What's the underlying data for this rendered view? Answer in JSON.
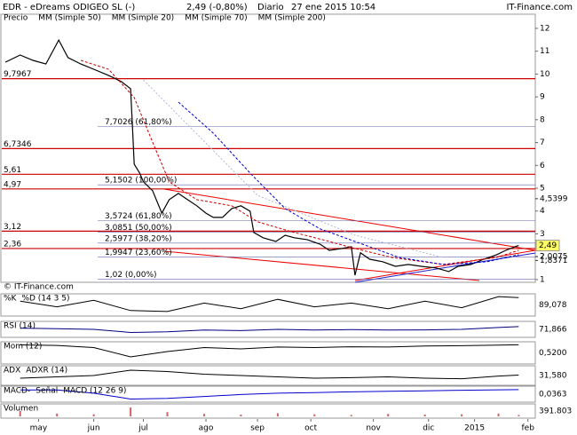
{
  "header": {
    "symbol": "EDR - eDreams ODIGEO SL (-)",
    "quote": "2,49 (-0,80%)",
    "period": "Diario",
    "datetime": "27 ene 2015 10:54",
    "source": "IT-Finance.com"
  },
  "watermark": "© IT-Finance.com",
  "chart_data": [
    {
      "type": "line",
      "xlim": [
        0,
        290
      ],
      "ylim": [
        0.88,
        12.27
      ],
      "yticks": [
        1,
        2,
        3,
        4,
        5,
        6,
        7,
        8,
        9,
        10,
        11,
        12
      ],
      "xticks": [
        {
          "value": 20,
          "label": "may"
        },
        {
          "value": 50,
          "label": "jun"
        },
        {
          "value": 77,
          "label": "jul"
        },
        {
          "value": 111,
          "label": "ago"
        },
        {
          "value": 139,
          "label": "sep"
        },
        {
          "value": 168,
          "label": "oct"
        },
        {
          "value": 202,
          "label": "nov"
        },
        {
          "value": 232,
          "label": "dic"
        },
        {
          "value": 257,
          "label": "2015"
        },
        {
          "value": 286,
          "label": "feb"
        }
      ],
      "series": [
        {
          "name": "Precio",
          "color": "#000000",
          "x": [
            2,
            10,
            17,
            24,
            31,
            36,
            43,
            50,
            58,
            65,
            70,
            71,
            72,
            75,
            77,
            82,
            87,
            91,
            96,
            101,
            106,
            111,
            115,
            120,
            125,
            130,
            135,
            137,
            142,
            149,
            154,
            159,
            166,
            173,
            178,
            185,
            190,
            192,
            195,
            200,
            207,
            214,
            221,
            228,
            236,
            243,
            248,
            255,
            262,
            269,
            274,
            279,
            281
          ],
          "values": [
            10.52,
            10.83,
            10.6,
            10.44,
            11.49,
            10.72,
            10.44,
            10.21,
            9.94,
            9.67,
            9.36,
            7.8,
            6.05,
            5.66,
            5.28,
            4.89,
            3.91,
            4.5,
            4.77,
            4.5,
            4.23,
            3.91,
            3.72,
            3.72,
            4.11,
            4.23,
            3.99,
            3.06,
            2.83,
            2.67,
            2.94,
            2.83,
            2.75,
            2.55,
            2.28,
            2.36,
            2.44,
            1.19,
            2.17,
            1.89,
            1.78,
            1.58,
            1.66,
            1.58,
            1.51,
            1.35,
            1.58,
            1.66,
            1.89,
            2.09,
            2.28,
            2.44,
            2.49
          ]
        },
        {
          "name": "MM (Simple 50)",
          "color": "#b0b8d0",
          "dash": "2 2",
          "x": [
            77,
            139,
            192,
            240
          ],
          "values": [
            9.74,
            4.69,
            2.94,
            1.97
          ]
        },
        {
          "name": "MM (Simple 20)",
          "color": "#cc0000",
          "dash": "3 2",
          "x": [
            43,
            58,
            72,
            82,
            91,
            106,
            125,
            139,
            159,
            178,
            192,
            212,
            240,
            269,
            281
          ],
          "values": [
            10.6,
            10.21,
            8.97,
            7.02,
            5.28,
            4.5,
            4.23,
            3.53,
            3.06,
            2.67,
            2.36,
            1.97,
            1.66,
            1.97,
            2.28
          ]
        },
        {
          "name": "MM (Simple 70)",
          "color": "#0000cc",
          "dash": "3 2",
          "x": [
            96,
            115,
            135,
            154,
            173,
            192,
            216,
            240,
            264,
            281
          ],
          "values": [
            8.77,
            7.41,
            5.66,
            4.11,
            3.22,
            2.67,
            1.97,
            1.66,
            1.78,
            2.09
          ]
        },
        {
          "name": "MM (Simple 200)",
          "color": "#008800",
          "x": [],
          "values": []
        }
      ],
      "levels": [
        {
          "value": 9.7967,
          "label": "9,7967"
        },
        {
          "value": 6.7346,
          "label": "6,7346"
        },
        {
          "value": 5.61,
          "label": "5,61"
        },
        {
          "value": 4.97,
          "label": "4,97"
        },
        {
          "value": 3.12,
          "label": "3,12"
        },
        {
          "value": 2.36,
          "label": "2,36"
        }
      ],
      "fib_levels": [
        {
          "value": 7.7026,
          "label": "7,7026 (61,80%)"
        },
        {
          "value": 5.1502,
          "label": "5,1502 (100,00%)"
        },
        {
          "value": 3.5724,
          "label": "3,5724 (61,80%)"
        },
        {
          "value": 3.0851,
          "label": "3,0851 (50,00%)"
        },
        {
          "value": 2.5977,
          "label": "2,5977 (38,20%)"
        },
        {
          "value": 1.9947,
          "label": "1,9947 (23,60%)"
        },
        {
          "value": 1.02,
          "label": "1,02 (0,00%)"
        }
      ],
      "price_labels": [
        {
          "value": 4.5399,
          "label": "4,5399"
        },
        {
          "value": 2.0075,
          "label": "2,0075"
        },
        {
          "value": 1.8371,
          "label": "1,8371"
        }
      ],
      "last": {
        "value": 2.49,
        "label": "2,49"
      }
    },
    {
      "type": "line",
      "title_parts": [
        {
          "text": "%K",
          "color": "#000000"
        },
        {
          "text": "%D (14 3 5)",
          "color": "#cc0000"
        }
      ],
      "ylim": [
        0,
        100
      ],
      "color": "#000000",
      "x": [
        10,
        30,
        50,
        70,
        90,
        110,
        130,
        150,
        170,
        190,
        210,
        230,
        250,
        270,
        281
      ],
      "values": [
        70,
        40,
        75,
        20,
        15,
        60,
        30,
        80,
        40,
        60,
        30,
        70,
        35,
        95,
        89.078
      ],
      "value_label": "89,078"
    },
    {
      "type": "line",
      "title_parts": [
        {
          "text": "RSI (14)",
          "color": "#000000"
        }
      ],
      "ylim": [
        0,
        100
      ],
      "color": "#000080",
      "x": [
        10,
        30,
        50,
        70,
        90,
        110,
        130,
        150,
        170,
        190,
        210,
        230,
        250,
        270,
        281
      ],
      "values": [
        60,
        55,
        50,
        25,
        30,
        45,
        40,
        50,
        45,
        48,
        44,
        46,
        50,
        65,
        71.866
      ],
      "value_label": "71,866"
    },
    {
      "type": "line",
      "title_parts": [
        {
          "text": "Mom (12)",
          "color": "#000000"
        }
      ],
      "ylim": [
        -6,
        1
      ],
      "color": "#000000",
      "x": [
        10,
        30,
        50,
        70,
        90,
        110,
        130,
        150,
        170,
        190,
        210,
        230,
        250,
        270,
        281
      ],
      "values": [
        0.5,
        0.3,
        -0.5,
        -4,
        -2,
        -0.5,
        -1,
        -0.3,
        -0.5,
        -0.2,
        -0.3,
        0.1,
        0.2,
        0.4,
        0.52
      ],
      "value_label": "0,5200"
    },
    {
      "type": "line",
      "title_parts": [
        {
          "text": "ADX",
          "color": "#000000"
        },
        {
          "text": "ADXR (14)",
          "color": "#cc0000"
        }
      ],
      "ylim": [
        0,
        60
      ],
      "color": "#000000",
      "x": [
        10,
        30,
        50,
        70,
        90,
        110,
        130,
        150,
        170,
        190,
        210,
        230,
        250,
        270,
        281
      ],
      "values": [
        20,
        25,
        30,
        50,
        45,
        35,
        30,
        25,
        20,
        22,
        25,
        20,
        18,
        28,
        31.58
      ],
      "value_label": "31,580"
    },
    {
      "type": "line",
      "title_parts": [
        {
          "text": "MACD-",
          "color": "#008800"
        },
        {
          "text": "Señal",
          "color": "#cc0000"
        },
        {
          "text": "MACD (12 26 9)",
          "color": "#0000cc"
        }
      ],
      "ylim": [
        -1.6,
        0.3
      ],
      "color": "#0000cc",
      "x": [
        10,
        30,
        50,
        70,
        90,
        110,
        130,
        150,
        170,
        190,
        210,
        230,
        250,
        270,
        281
      ],
      "values": [
        0,
        0,
        -0.5,
        -1.4,
        -1.3,
        -1,
        -0.7,
        -0.5,
        -0.4,
        -0.3,
        -0.2,
        -0.15,
        -0.05,
        0.02,
        0.0363
      ],
      "value_label": "0,0363"
    },
    {
      "type": "bar",
      "title_parts": [
        {
          "text": "Volumen",
          "color": "#cc0000"
        }
      ],
      "ylim": [
        0,
        3000000
      ],
      "color": "#cc6666",
      "x": [
        10,
        30,
        50,
        70,
        90,
        110,
        130,
        150,
        170,
        190,
        210,
        230,
        250,
        270,
        281
      ],
      "values": [
        1500000,
        800000,
        600000,
        2500000,
        1200000,
        700000,
        500000,
        900000,
        600000,
        400000,
        700000,
        500000,
        600000,
        800000,
        391803
      ],
      "value_label": "391.803"
    }
  ]
}
